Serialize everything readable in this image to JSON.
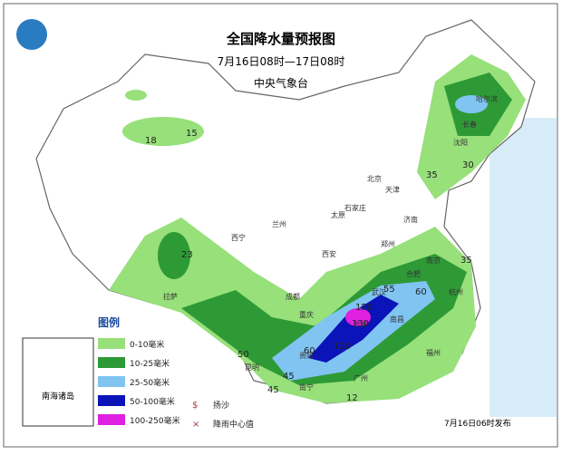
{
  "header": {
    "title": "全国降水量预报图",
    "period": "7月16日08时—17日08时",
    "issuer": "中央气象台"
  },
  "legend": {
    "title": "图例",
    "items": [
      "0-10毫米",
      "10-25毫米",
      "25-50毫米",
      "50-100毫米",
      "100-250毫米"
    ],
    "symbols": [
      "扬沙",
      "降雨中心值"
    ]
  },
  "inset": "南海诸岛",
  "footer": "7月16日06时发布",
  "rain_centers": [
    "15",
    "18",
    "23",
    "35",
    "30",
    "35",
    "55",
    "60",
    "150",
    "130",
    "120",
    "60",
    "50",
    "45",
    "45",
    "12"
  ],
  "cities": [
    "哈尔滨",
    "长春",
    "沈阳",
    "北京",
    "天津",
    "石家庄",
    "太原",
    "济南",
    "郑州",
    "西安",
    "兰州",
    "西宁",
    "成都",
    "重庆",
    "武汉",
    "合肥",
    "南京",
    "杭州",
    "长沙",
    "南昌",
    "福州",
    "贵阳",
    "昆明",
    "南宁",
    "广州",
    "拉萨"
  ]
}
